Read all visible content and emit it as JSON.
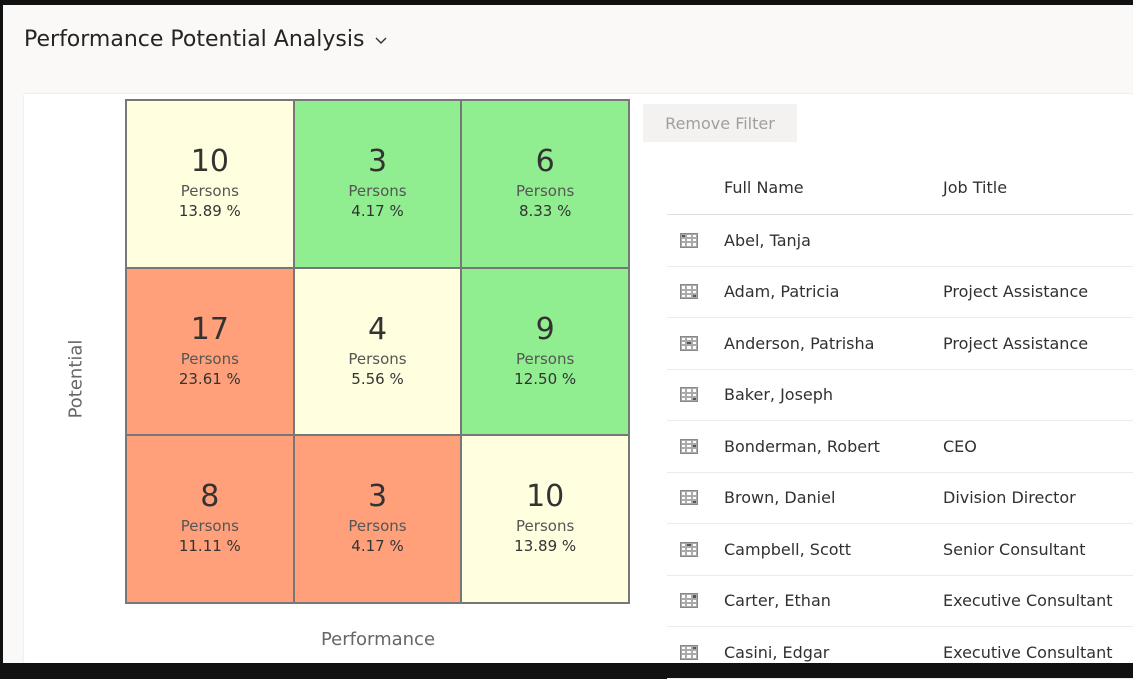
{
  "header": {
    "title": "Performance Potential Analysis",
    "chevron_icon": "chevron-down-icon"
  },
  "matrix": {
    "y_label": "Potential",
    "x_label": "Performance",
    "unit_label": "Persons",
    "colors": {
      "low": "#ffa07a",
      "mid": "#ffffe0",
      "high": "#90ee90"
    },
    "cells": [
      {
        "count": "10",
        "label": "Persons",
        "percent": "13.89 %",
        "color": "#ffffe0"
      },
      {
        "count": "3",
        "label": "Persons",
        "percent": "4.17 %",
        "color": "#90ee90"
      },
      {
        "count": "6",
        "label": "Persons",
        "percent": "8.33 %",
        "color": "#90ee90"
      },
      {
        "count": "17",
        "label": "Persons",
        "percent": "23.61 %",
        "color": "#ffa07a"
      },
      {
        "count": "4",
        "label": "Persons",
        "percent": "5.56 %",
        "color": "#ffffe0"
      },
      {
        "count": "9",
        "label": "Persons",
        "percent": "12.50 %",
        "color": "#90ee90"
      },
      {
        "count": "8",
        "label": "Persons",
        "percent": "11.11 %",
        "color": "#ffa07a"
      },
      {
        "count": "3",
        "label": "Persons",
        "percent": "4.17 %",
        "color": "#ffa07a"
      },
      {
        "count": "10",
        "label": "Persons",
        "percent": "13.89 %",
        "color": "#ffffe0"
      }
    ]
  },
  "remove_filter": "Remove Filter",
  "table": {
    "columns": [
      "Full Name",
      "Job Title"
    ],
    "rows": [
      {
        "name": "Abel, Tanja",
        "title": "",
        "cell": 0
      },
      {
        "name": "Adam, Patricia",
        "title": "Project Assistance",
        "cell": 8
      },
      {
        "name": "Anderson, Patrisha",
        "title": "Project Assistance",
        "cell": 4
      },
      {
        "name": "Baker, Joseph",
        "title": "",
        "cell": 8
      },
      {
        "name": "Bonderman, Robert",
        "title": "CEO",
        "cell": 5
      },
      {
        "name": "Brown, Daniel",
        "title": "Division Director",
        "cell": 8
      },
      {
        "name": "Campbell, Scott",
        "title": "Senior Consultant",
        "cell": 1
      },
      {
        "name": "Carter, Ethan",
        "title": "Executive Consultant",
        "cell": 2
      },
      {
        "name": "Casini, Edgar",
        "title": "Executive Consultant",
        "cell": 2
      }
    ]
  }
}
